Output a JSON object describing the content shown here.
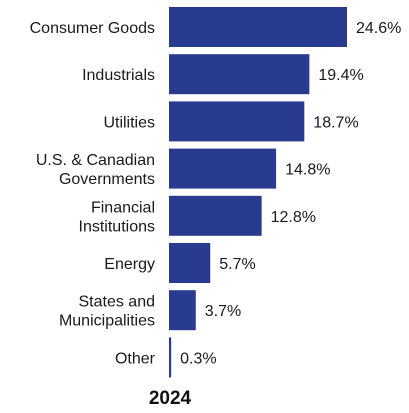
{
  "chart_data": {
    "type": "bar",
    "orientation": "horizontal",
    "title": "2024",
    "categories": [
      [
        "Consumer Goods"
      ],
      [
        "Industrials"
      ],
      [
        "Utilities"
      ],
      [
        "U.S. & Canadian",
        "Governments"
      ],
      [
        "Financial",
        "Institutions"
      ],
      [
        "Energy"
      ],
      [
        "States and",
        "Municipalities"
      ],
      [
        "Other"
      ]
    ],
    "values": [
      24.6,
      19.4,
      18.7,
      14.8,
      12.8,
      5.7,
      3.7,
      0.3
    ],
    "value_labels": [
      "24.6%",
      "19.4%",
      "18.7%",
      "14.8%",
      "12.8%",
      "5.7%",
      "3.7%",
      "0.3%"
    ],
    "bar_color": "#283b8e",
    "xlim": [
      0,
      24.6
    ],
    "grid": false,
    "legend": "none"
  }
}
